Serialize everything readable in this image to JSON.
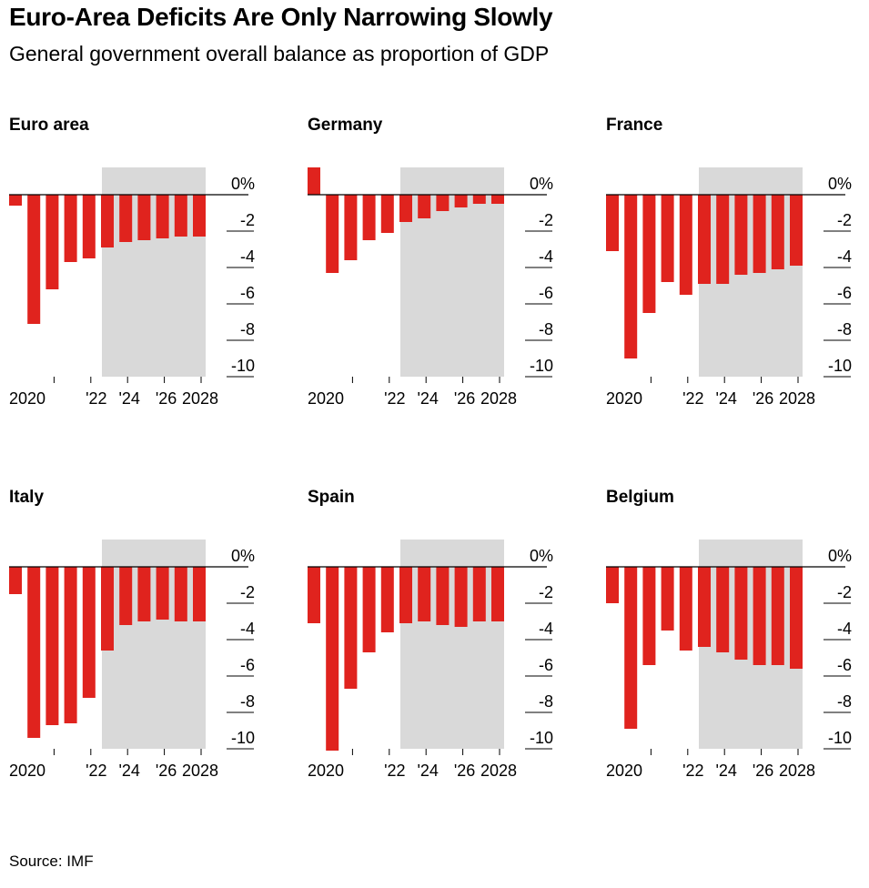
{
  "header": {
    "title": "Euro-Area Deficits Are Only Narrowing Slowly",
    "subtitle": "General government overall balance as proportion of GDP"
  },
  "footer": {
    "source": "Source: IMF"
  },
  "colors": {
    "bar": "#e0231e",
    "projection": "#d9d9d9",
    "axis": "#000000"
  },
  "chart_data": [
    {
      "type": "bar",
      "title": "Euro area",
      "x": [
        2018,
        2019,
        2020,
        2021,
        2022,
        2023,
        2024,
        2025,
        2026,
        2027,
        2028,
        2029
      ],
      "values": [
        -0.6,
        -7.1,
        -5.2,
        -3.7,
        -3.5,
        -2.9,
        -2.6,
        -2.5,
        -2.4,
        -2.3,
        -2.3,
        null
      ],
      "x_tick_labels": [
        "2020",
        "'22",
        "'24",
        "'26",
        "2028"
      ],
      "y_tick_labels": [
        "0%",
        "-2",
        "-4",
        "-6",
        "-8",
        "-10"
      ],
      "ylim": [
        -10,
        1.5
      ],
      "projection_start": 2023
    },
    {
      "type": "bar",
      "title": "Germany",
      "x": [
        2018,
        2019,
        2020,
        2021,
        2022,
        2023,
        2024,
        2025,
        2026,
        2027,
        2028,
        2029
      ],
      "values": [
        1.5,
        -4.3,
        -3.6,
        -2.5,
        -2.1,
        -1.5,
        -1.3,
        -0.9,
        -0.7,
        -0.5,
        -0.5,
        null
      ],
      "x_tick_labels": [
        "2020",
        "'22",
        "'24",
        "'26",
        "2028"
      ],
      "y_tick_labels": [
        "0%",
        "-2",
        "-4",
        "-6",
        "-8",
        "-10"
      ],
      "ylim": [
        -10,
        1.5
      ],
      "projection_start": 2023
    },
    {
      "type": "bar",
      "title": "France",
      "x": [
        2018,
        2019,
        2020,
        2021,
        2022,
        2023,
        2024,
        2025,
        2026,
        2027,
        2028,
        2029
      ],
      "values": [
        -3.1,
        -9.0,
        -6.5,
        -4.8,
        -5.5,
        -4.9,
        -4.9,
        -4.4,
        -4.3,
        -4.1,
        -3.9,
        null
      ],
      "x_tick_labels": [
        "2020",
        "'22",
        "'24",
        "'26",
        "2028"
      ],
      "y_tick_labels": [
        "0%",
        "-2",
        "-4",
        "-6",
        "-8",
        "-10"
      ],
      "ylim": [
        -10,
        1.5
      ],
      "projection_start": 2023
    },
    {
      "type": "bar",
      "title": "Italy",
      "x": [
        2018,
        2019,
        2020,
        2021,
        2022,
        2023,
        2024,
        2025,
        2026,
        2027,
        2028,
        2029
      ],
      "values": [
        -1.5,
        -9.4,
        -8.7,
        -8.6,
        -7.2,
        -4.6,
        -3.2,
        -3.0,
        -2.9,
        -3.0,
        -3.0,
        null
      ],
      "x_tick_labels": [
        "2020",
        "'22",
        "'24",
        "'26",
        "2028"
      ],
      "y_tick_labels": [
        "0%",
        "-2",
        "-4",
        "-6",
        "-8",
        "-10"
      ],
      "ylim": [
        -10,
        1.5
      ],
      "projection_start": 2023
    },
    {
      "type": "bar",
      "title": "Spain",
      "x": [
        2018,
        2019,
        2020,
        2021,
        2022,
        2023,
        2024,
        2025,
        2026,
        2027,
        2028,
        2029
      ],
      "values": [
        -3.1,
        -10.1,
        -6.7,
        -4.7,
        -3.6,
        -3.1,
        -3.0,
        -3.2,
        -3.3,
        -3.0,
        -3.0,
        null
      ],
      "x_tick_labels": [
        "2020",
        "'22",
        "'24",
        "'26",
        "2028"
      ],
      "y_tick_labels": [
        "0%",
        "-2",
        "-4",
        "-6",
        "-8",
        "-10"
      ],
      "ylim": [
        -10,
        1.5
      ],
      "projection_start": 2023
    },
    {
      "type": "bar",
      "title": "Belgium",
      "x": [
        2018,
        2019,
        2020,
        2021,
        2022,
        2023,
        2024,
        2025,
        2026,
        2027,
        2028,
        2029
      ],
      "values": [
        -2.0,
        -8.9,
        -5.4,
        -3.5,
        -4.6,
        -4.4,
        -4.7,
        -5.1,
        -5.4,
        -5.4,
        -5.6,
        null
      ],
      "x_tick_labels": [
        "2020",
        "'22",
        "'24",
        "'26",
        "2028"
      ],
      "y_tick_labels": [
        "0%",
        "-2",
        "-4",
        "-6",
        "-8",
        "-10"
      ],
      "ylim": [
        -10,
        1.5
      ],
      "projection_start": 2023
    }
  ]
}
